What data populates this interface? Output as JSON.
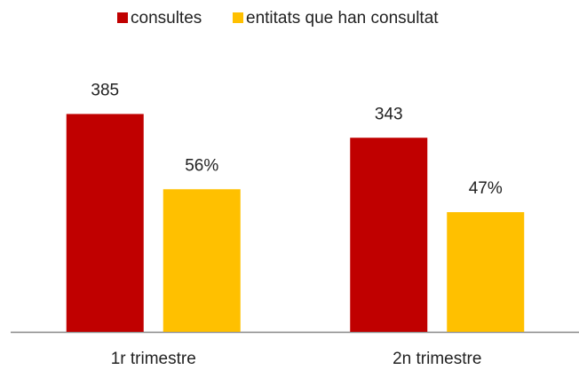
{
  "chart_data": {
    "type": "bar",
    "categories": [
      "1r trimestre",
      "2n trimestre"
    ],
    "series": [
      {
        "name": "consultes",
        "color": "#c00000",
        "values": [
          385,
          343
        ]
      },
      {
        "name": "entitats que han consultat",
        "color": "#ffc000",
        "values": [
          56,
          47
        ],
        "value_labels": [
          "56%",
          "47%"
        ],
        "axis": "y2"
      }
    ],
    "ylim": [
      0,
      450
    ],
    "y2lim": [
      0,
      100
    ],
    "legend": "top"
  }
}
